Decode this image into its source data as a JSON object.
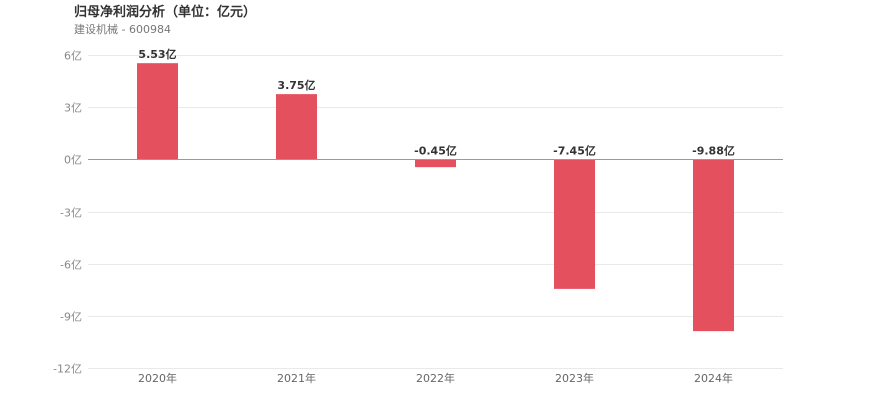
{
  "header": {
    "title": "归母净利润分析（单位：亿元）",
    "subtitle": "建设机械 - 600984"
  },
  "chart_data": {
    "type": "bar",
    "title": "归母净利润分析（单位：亿元）",
    "subtitle": "建设机械 - 600984",
    "xlabel": "",
    "ylabel": "",
    "categories": [
      "2020年",
      "2021年",
      "2022年",
      "2023年",
      "2024年"
    ],
    "values": [
      5.53,
      3.75,
      -0.45,
      -7.45,
      -9.88
    ],
    "data_labels": [
      "5.53亿",
      "3.75亿",
      "-0.45亿",
      "-7.45亿",
      "-9.88亿"
    ],
    "ylim": [
      -12,
      6
    ],
    "yticks": [
      6,
      3,
      0,
      -3,
      -6,
      -9,
      -12
    ],
    "ytick_labels": [
      "6亿",
      "3亿",
      "0亿",
      "-3亿",
      "-6亿",
      "-9亿",
      "-12亿"
    ],
    "grid": true,
    "legend": "none",
    "bar_color": "#e5505f"
  }
}
